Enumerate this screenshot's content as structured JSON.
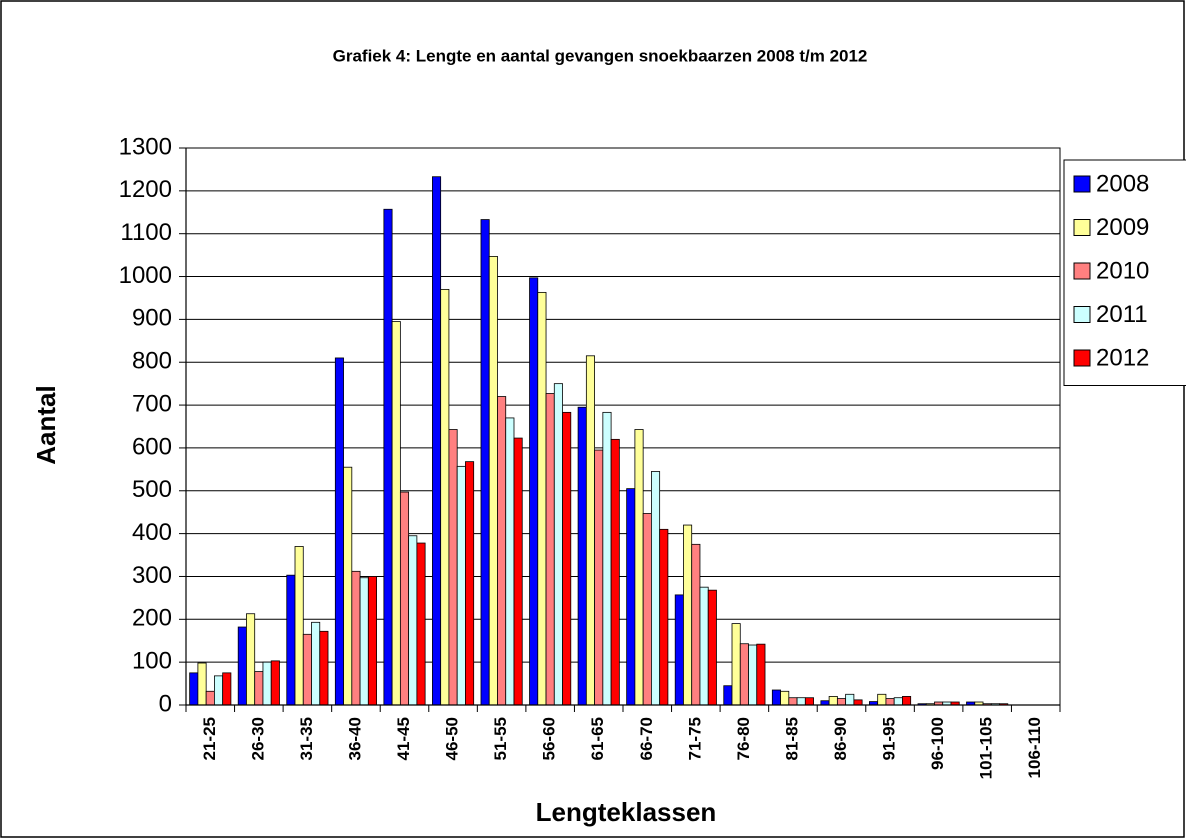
{
  "chart_data": {
    "type": "bar",
    "title": "Grafiek 4: Lengte en aantal gevangen snoekbaarzen 2008 t/m 2012",
    "x_label": "Lengteklassen",
    "y_label": "Aantal",
    "categories": [
      "21-25",
      "26-30",
      "31-35",
      "36-40",
      "41-45",
      "46-50",
      "51-55",
      "56-60",
      "61-65",
      "66-70",
      "71-75",
      "76-80",
      "81-85",
      "86-90",
      "91-95",
      "96-100",
      "101-105",
      "106-110"
    ],
    "series": [
      {
        "name": "2008",
        "color": "#0000ff",
        "values": [
          75,
          182,
          303,
          810,
          1157,
          1233,
          1133,
          997,
          695,
          505,
          257,
          45,
          35,
          10,
          8,
          3,
          7,
          0
        ]
      },
      {
        "name": "2009",
        "color": "#ffff99",
        "values": [
          98,
          213,
          370,
          555,
          895,
          970,
          1047,
          963,
          815,
          643,
          420,
          190,
          32,
          20,
          25,
          3,
          7,
          0
        ]
      },
      {
        "name": "2010",
        "color": "#ff8080",
        "values": [
          32,
          78,
          165,
          312,
          497,
          643,
          720,
          727,
          595,
          447,
          375,
          143,
          17,
          15,
          15,
          7,
          3,
          0
        ]
      },
      {
        "name": "2011",
        "color": "#ccffff",
        "values": [
          68,
          100,
          193,
          297,
          395,
          557,
          670,
          750,
          683,
          545,
          275,
          140,
          17,
          25,
          17,
          7,
          3,
          0
        ]
      },
      {
        "name": "2012",
        "color": "#ff0000",
        "values": [
          75,
          103,
          172,
          300,
          378,
          568,
          623,
          683,
          620,
          410,
          268,
          142,
          17,
          12,
          20,
          7,
          3,
          0
        ]
      }
    ],
    "ylim": [
      0,
      1300
    ],
    "yticks": [
      0,
      100,
      200,
      300,
      400,
      500,
      600,
      700,
      800,
      900,
      1000,
      1100,
      1200,
      1300
    ],
    "grid": true,
    "legend": "right"
  }
}
